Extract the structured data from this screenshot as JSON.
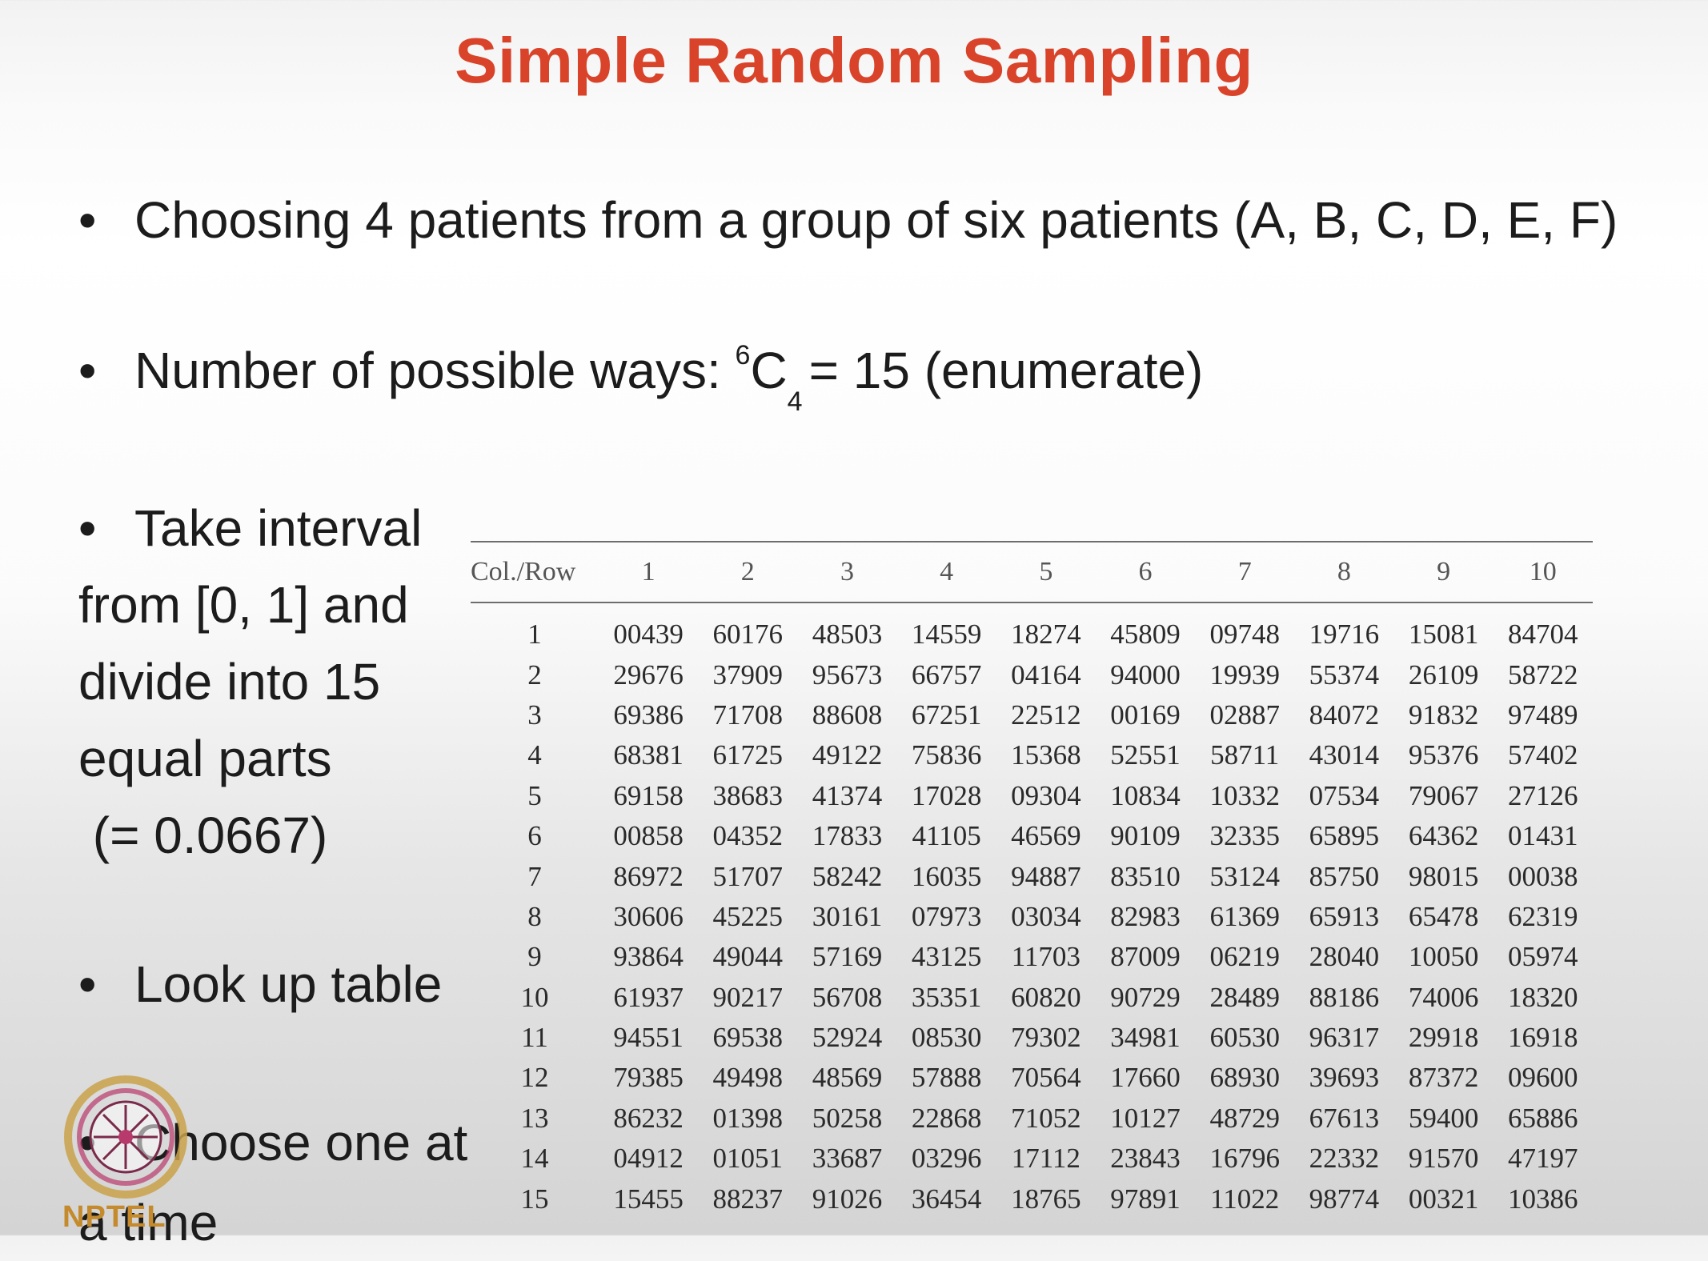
{
  "slide": {
    "title": "Simple Random Sampling",
    "bullet1": "Choosing 4 patients from a group of six patients (A, B, C, D, E, F)",
    "bullet2": {
      "prefix": "Number of possible ways: ",
      "sup": "6",
      "letter": "C",
      "sub": "4",
      "suffix": "= 15 (enumerate)"
    },
    "bullet3": {
      "lines": [
        "Take interval",
        "from [0, 1] and",
        "divide into 15",
        "equal parts",
        " (= 0.0667)"
      ]
    },
    "bullet4": "Look up table",
    "bullet5": "Choose one at",
    "bullet5_cont": "a time",
    "bullet_char": "•"
  },
  "logo": {
    "text": "NPTEL",
    "icon": "nptel-wheel-icon"
  },
  "table": {
    "header": [
      "Col./Row",
      "1",
      "2",
      "3",
      "4",
      "5",
      "6",
      "7",
      "8",
      "9",
      "10"
    ],
    "rows": [
      [
        "1",
        "00439",
        "60176",
        "48503",
        "14559",
        "18274",
        "45809",
        "09748",
        "19716",
        "15081",
        "84704"
      ],
      [
        "2",
        "29676",
        "37909",
        "95673",
        "66757",
        "04164",
        "94000",
        "19939",
        "55374",
        "26109",
        "58722"
      ],
      [
        "3",
        "69386",
        "71708",
        "88608",
        "67251",
        "22512",
        "00169",
        "02887",
        "84072",
        "91832",
        "97489"
      ],
      [
        "4",
        "68381",
        "61725",
        "49122",
        "75836",
        "15368",
        "52551",
        "58711",
        "43014",
        "95376",
        "57402"
      ],
      [
        "5",
        "69158",
        "38683",
        "41374",
        "17028",
        "09304",
        "10834",
        "10332",
        "07534",
        "79067",
        "27126"
      ],
      [
        "6",
        "00858",
        "04352",
        "17833",
        "41105",
        "46569",
        "90109",
        "32335",
        "65895",
        "64362",
        "01431"
      ],
      [
        "7",
        "86972",
        "51707",
        "58242",
        "16035",
        "94887",
        "83510",
        "53124",
        "85750",
        "98015",
        "00038"
      ],
      [
        "8",
        "30606",
        "45225",
        "30161",
        "07973",
        "03034",
        "82983",
        "61369",
        "65913",
        "65478",
        "62319"
      ],
      [
        "9",
        "93864",
        "49044",
        "57169",
        "43125",
        "11703",
        "87009",
        "06219",
        "28040",
        "10050",
        "05974"
      ],
      [
        "10",
        "61937",
        "90217",
        "56708",
        "35351",
        "60820",
        "90729",
        "28489",
        "88186",
        "74006",
        "18320"
      ],
      [
        "11",
        "94551",
        "69538",
        "52924",
        "08530",
        "79302",
        "34981",
        "60530",
        "96317",
        "29918",
        "16918"
      ],
      [
        "12",
        "79385",
        "49498",
        "48569",
        "57888",
        "70564",
        "17660",
        "68930",
        "39693",
        "87372",
        "09600"
      ],
      [
        "13",
        "86232",
        "01398",
        "50258",
        "22868",
        "71052",
        "10127",
        "48729",
        "67613",
        "59400",
        "65886"
      ],
      [
        "14",
        "04912",
        "01051",
        "33687",
        "03296",
        "17112",
        "23843",
        "16796",
        "22332",
        "91570",
        "47197"
      ],
      [
        "15",
        "15455",
        "88237",
        "91026",
        "36454",
        "18765",
        "97891",
        "11022",
        "98774",
        "00321",
        "10386"
      ]
    ]
  }
}
